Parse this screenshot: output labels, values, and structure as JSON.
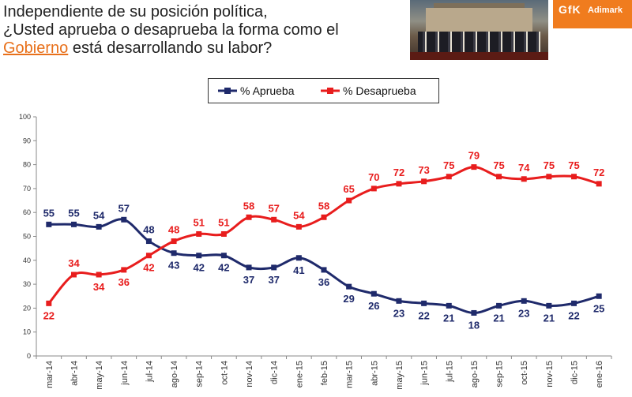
{
  "header": {
    "title_line1": "Independiente de su posición política,",
    "title_line2": "¿Usted aprueba o desaprueba la forma como el",
    "title_highlight": "Gobierno",
    "title_line3_rest": " está desarrollando su labor?",
    "logo_brand": "GfK",
    "logo_partner": "Adimark"
  },
  "colors": {
    "aprueba": "#1f2a6b",
    "desaprueba": "#e81d1d",
    "highlight": "#e8701a",
    "logo": "#f07c1e"
  },
  "chart_data": {
    "type": "line",
    "title": "",
    "xlabel": "",
    "ylabel": "",
    "ylim": [
      0,
      100
    ],
    "yticks": [
      0,
      10,
      20,
      30,
      40,
      50,
      60,
      70,
      80,
      90,
      100
    ],
    "grid": false,
    "legend_position": "top-center",
    "categories": [
      "mar-14",
      "abr-14",
      "may-14",
      "jun-14",
      "jul-14",
      "ago-14",
      "sep-14",
      "oct-14",
      "nov-14",
      "dic-14",
      "ene-15",
      "feb-15",
      "mar-15",
      "abr-15",
      "may-15",
      "jun-15",
      "jul-15",
      "ago-15",
      "sep-15",
      "oct-15",
      "nov-15",
      "dic-15",
      "ene-16"
    ],
    "series": [
      {
        "name": "% Aprueba",
        "color": "#1f2a6b",
        "values": [
          55,
          55,
          54,
          57,
          48,
          43,
          42,
          42,
          37,
          37,
          41,
          36,
          29,
          26,
          23,
          22,
          21,
          18,
          21,
          23,
          21,
          22,
          25
        ]
      },
      {
        "name": "% Desaprueba",
        "color": "#e81d1d",
        "values": [
          22,
          34,
          34,
          36,
          42,
          48,
          51,
          51,
          58,
          57,
          54,
          58,
          65,
          70,
          72,
          73,
          75,
          79,
          75,
          74,
          75,
          75,
          72
        ]
      }
    ]
  }
}
